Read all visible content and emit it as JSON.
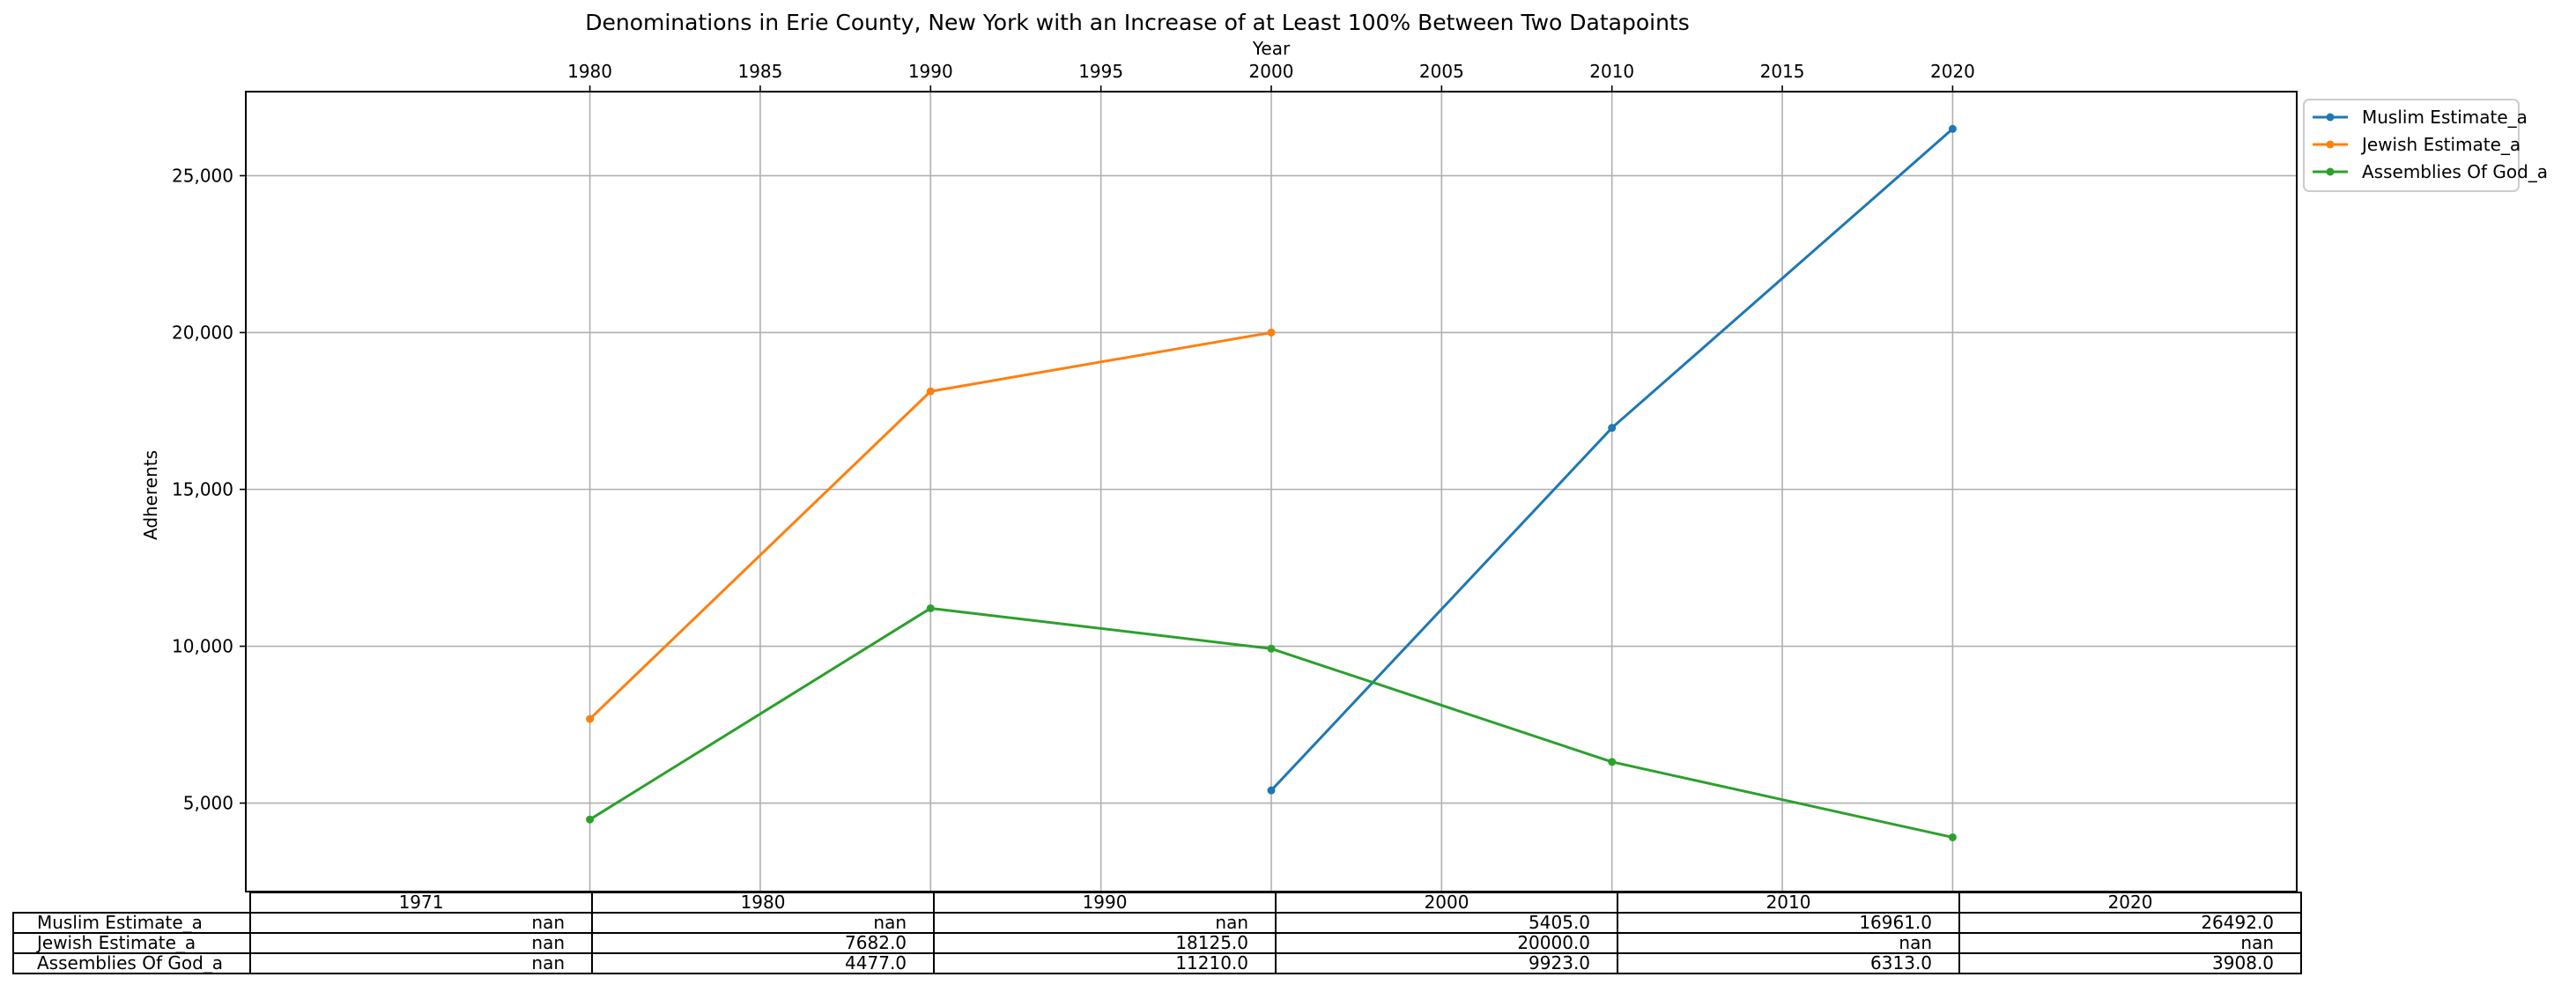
{
  "chart_data": {
    "type": "line",
    "title": "Denominations in Erie County, New York with an Increase of at Least 100% Between Two Datapoints",
    "xlabel": "Year",
    "ylabel": "Adherents",
    "x_axis_position": "top",
    "xlim": [
      1969.9,
      2030.1
    ],
    "ylim": [
      2180,
      27680
    ],
    "xticks": [
      1980,
      1985,
      1990,
      1995,
      2000,
      2005,
      2010,
      2015,
      2020
    ],
    "xtick_labels": [
      "1980",
      "1985",
      "1990",
      "1995",
      "2000",
      "2005",
      "2010",
      "2015",
      "2020"
    ],
    "yticks": [
      5000,
      10000,
      15000,
      20000,
      25000
    ],
    "ytick_labels": [
      "5,000",
      "10,000",
      "15,000",
      "20,000",
      "25,000"
    ],
    "grid": true,
    "legend_position": "outside-top-right",
    "series": [
      {
        "name": "Muslim Estimate_a",
        "color": "#1f77b4",
        "points": [
          [
            2000,
            5405
          ],
          [
            2010,
            16961
          ],
          [
            2020,
            26492
          ]
        ]
      },
      {
        "name": "Jewish Estimate_a",
        "color": "#ff7f0e",
        "points": [
          [
            1980,
            7682
          ],
          [
            1990,
            18125
          ],
          [
            2000,
            20000
          ]
        ]
      },
      {
        "name": "Assemblies Of God_a",
        "color": "#2ca02c",
        "points": [
          [
            1980,
            4477
          ],
          [
            1990,
            11210
          ],
          [
            2000,
            9923
          ],
          [
            2010,
            6313
          ],
          [
            2020,
            3908
          ]
        ]
      }
    ],
    "table": {
      "columns": [
        "1971",
        "1980",
        "1990",
        "2000",
        "2010",
        "2020"
      ],
      "rows": [
        {
          "label": "Muslim Estimate_a",
          "cells": [
            "nan",
            "nan",
            "nan",
            "5405.0",
            "16961.0",
            "26492.0"
          ]
        },
        {
          "label": "Jewish Estimate_a",
          "cells": [
            "nan",
            "7682.0",
            "18125.0",
            "20000.0",
            "nan",
            "nan"
          ]
        },
        {
          "label": "Assemblies Of God_a",
          "cells": [
            "nan",
            "4477.0",
            "11210.0",
            "9923.0",
            "6313.0",
            "3908.0"
          ]
        }
      ]
    }
  }
}
